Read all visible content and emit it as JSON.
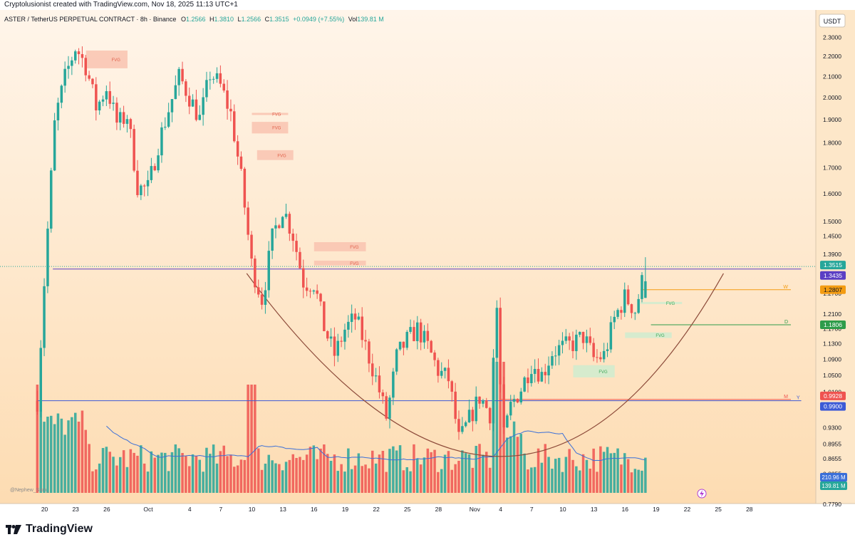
{
  "header": {
    "created_line": "Cryptolusionist created with TradingView.com, Nov 18, 2025 11:13 UTC+1"
  },
  "legend": {
    "symbol": "ASTER / TetherUS PERPETUAL CONTRACT · 8h · Binance",
    "open_label": "O",
    "open": "1.2566",
    "high_label": "H",
    "high": "1.3810",
    "low_label": "L",
    "low": "1.2566",
    "close_label": "C",
    "close": "1.3515",
    "change": "+0.0949 (+7.55%)",
    "vol_label": "Vol",
    "vol": "139.81 M"
  },
  "watermark": "@Nephew_Sam_",
  "footer": {
    "brand": "TradingView"
  },
  "colors": {
    "up": "#26a69a",
    "down": "#ef5350",
    "bg_top": "#fff3e6",
    "bg_bottom": "#fde0b8",
    "fvg_down": "#f9c3b0",
    "fvg_up": "#cfeccf",
    "curve": "#8d4b3a",
    "vol_ma": "#3a6fd8",
    "blue_level": "#3c5ad6",
    "orange_level": "#f39c12",
    "green_level": "#2e9c4a"
  },
  "chart_data": {
    "type": "candlestick",
    "symbol": "ASTER / TetherUS PERPETUAL CONTRACT",
    "timeframe": "8h",
    "exchange": "Binance",
    "y_scale": "log",
    "y_currency": "USDT",
    "y_range": [
      0.78,
      2.45
    ],
    "x_range_days": [
      "Sep 19",
      "Nov 29"
    ],
    "y_ticks": [
      "2.3000",
      "2.2000",
      "2.1000",
      "2.0000",
      "1.9000",
      "1.8000",
      "1.7000",
      "1.6000",
      "1.5000",
      "1.4500",
      "1.3900",
      "1.2700",
      "1.2100",
      "1.1700",
      "1.1300",
      "1.0900",
      "1.0500",
      "1.0100",
      "0.9300",
      "0.8955",
      "0.8655",
      "0.8355",
      "0.7790"
    ],
    "x_ticks": [
      {
        "label": "20",
        "day": 20
      },
      {
        "label": "23",
        "day": 23
      },
      {
        "label": "26",
        "day": 26
      },
      {
        "label": "Oct",
        "day": 30
      },
      {
        "label": "4",
        "day": 34
      },
      {
        "label": "7",
        "day": 37
      },
      {
        "label": "10",
        "day": 40
      },
      {
        "label": "13",
        "day": 43
      },
      {
        "label": "16",
        "day": 46
      },
      {
        "label": "19",
        "day": 49
      },
      {
        "label": "22",
        "day": 52
      },
      {
        "label": "25",
        "day": 55
      },
      {
        "label": "28",
        "day": 58
      },
      {
        "label": "Nov",
        "day": 61.5
      },
      {
        "label": "4",
        "day": 64
      },
      {
        "label": "7",
        "day": 67
      },
      {
        "label": "10",
        "day": 70
      },
      {
        "label": "13",
        "day": 73
      },
      {
        "label": "16",
        "day": 76
      },
      {
        "label": "19",
        "day": 79
      },
      {
        "label": "22",
        "day": 82
      },
      {
        "label": "25",
        "day": 85
      },
      {
        "label": "28",
        "day": 88
      }
    ],
    "key_closes": [
      {
        "day": 19.3,
        "close": 0.99
      },
      {
        "day": 20,
        "close": 1.32
      },
      {
        "day": 21,
        "close": 1.9
      },
      {
        "day": 22,
        "close": 2.1
      },
      {
        "day": 23,
        "close": 2.25
      },
      {
        "day": 24,
        "close": 2.15
      },
      {
        "day": 25,
        "close": 1.95
      },
      {
        "day": 26,
        "close": 2.05
      },
      {
        "day": 27,
        "close": 1.88
      },
      {
        "day": 28,
        "close": 1.92
      },
      {
        "day": 29,
        "close": 1.62
      },
      {
        "day": 30,
        "close": 1.62
      },
      {
        "day": 31,
        "close": 1.8
      },
      {
        "day": 32,
        "close": 1.95
      },
      {
        "day": 33,
        "close": 2.1
      },
      {
        "day": 34,
        "close": 2.0
      },
      {
        "day": 35,
        "close": 1.9
      },
      {
        "day": 36,
        "close": 2.12
      },
      {
        "day": 37,
        "close": 2.05
      },
      {
        "day": 38,
        "close": 1.92
      },
      {
        "day": 39,
        "close": 1.65
      },
      {
        "day": 40,
        "close": 1.35
      },
      {
        "day": 41,
        "close": 1.25
      },
      {
        "day": 42,
        "close": 1.45
      },
      {
        "day": 43,
        "close": 1.55
      },
      {
        "day": 44,
        "close": 1.45
      },
      {
        "day": 45,
        "close": 1.3
      },
      {
        "day": 46,
        "close": 1.3
      },
      {
        "day": 47,
        "close": 1.17
      },
      {
        "day": 48,
        "close": 1.1
      },
      {
        "day": 49,
        "close": 1.17
      },
      {
        "day": 50,
        "close": 1.2
      },
      {
        "day": 51,
        "close": 1.12
      },
      {
        "day": 52,
        "close": 1.04
      },
      {
        "day": 53,
        "close": 0.95
      },
      {
        "day": 54,
        "close": 1.1
      },
      {
        "day": 55,
        "close": 1.14
      },
      {
        "day": 56,
        "close": 1.17
      },
      {
        "day": 57,
        "close": 1.12
      },
      {
        "day": 58,
        "close": 1.06
      },
      {
        "day": 59,
        "close": 1.04
      },
      {
        "day": 60,
        "close": 0.9
      },
      {
        "day": 61,
        "close": 0.95
      },
      {
        "day": 62,
        "close": 1.0
      },
      {
        "day": 63,
        "close": 0.96
      },
      {
        "day": 63.6,
        "close": 1.25
      },
      {
        "day": 64.2,
        "close": 0.9
      },
      {
        "day": 65,
        "close": 0.98
      },
      {
        "day": 66,
        "close": 1.02
      },
      {
        "day": 67,
        "close": 1.08
      },
      {
        "day": 68,
        "close": 1.05
      },
      {
        "day": 69,
        "close": 1.11
      },
      {
        "day": 70,
        "close": 1.12
      },
      {
        "day": 71,
        "close": 1.13
      },
      {
        "day": 72,
        "close": 1.15
      },
      {
        "day": 73,
        "close": 1.09
      },
      {
        "day": 74,
        "close": 1.1
      },
      {
        "day": 75,
        "close": 1.2
      },
      {
        "day": 76,
        "close": 1.26
      },
      {
        "day": 77,
        "close": 1.22
      },
      {
        "day": 77.6,
        "close": 1.3
      },
      {
        "day": 78.2,
        "close": 1.3515
      }
    ],
    "volume": {
      "ma_label": "210.96 M",
      "last_label": "139.81 M",
      "spikes_days": [
        19.3,
        40,
        63.6,
        64.2
      ]
    },
    "fvg_zones": [
      {
        "label": "FVG",
        "type": "bearish",
        "x1": 24,
        "x2": 28,
        "y_top": 2.23,
        "y_bottom": 2.14
      },
      {
        "label": "FVG",
        "type": "bearish",
        "x1": 40,
        "x2": 43.5,
        "y_top": 1.93,
        "y_bottom": 1.925
      },
      {
        "label": "FVG",
        "type": "bearish",
        "x1": 40,
        "x2": 43.5,
        "y_top": 1.89,
        "y_bottom": 1.84
      },
      {
        "label": "FVG",
        "type": "bearish",
        "x1": 40.5,
        "x2": 44,
        "y_top": 1.77,
        "y_bottom": 1.73
      },
      {
        "label": "FVG",
        "type": "bearish",
        "x1": 46,
        "x2": 51,
        "y_top": 1.43,
        "y_bottom": 1.4
      },
      {
        "label": "FVG",
        "type": "bearish",
        "x1": 46,
        "x2": 51,
        "y_top": 1.37,
        "y_bottom": 1.355
      },
      {
        "label": "FVG",
        "type": "bullish",
        "x1": 77.5,
        "x2": 81.5,
        "y_top": 1.245,
        "y_bottom": 1.24
      },
      {
        "label": "FVG",
        "type": "bullish",
        "x1": 76,
        "x2": 80.5,
        "y_top": 1.16,
        "y_bottom": 1.145
      },
      {
        "label": "FVG",
        "type": "bullish",
        "x1": 71,
        "x2": 75,
        "y_top": 1.075,
        "y_bottom": 1.045
      }
    ],
    "levels": [
      {
        "name": "range_high",
        "price": 1.3435,
        "label": "1.3435",
        "color": "#5b3fc4",
        "x1": 20.8,
        "x2": 93
      },
      {
        "name": "Y",
        "price": 0.99,
        "label": "0.9900",
        "color": "#3c5ad6",
        "x1": 19.3,
        "x2": 93,
        "text": "Y"
      },
      {
        "name": "M",
        "price": 0.9928,
        "label": "0.9928",
        "color": "#ef5350",
        "x1": 64,
        "x2": 92,
        "text": "M"
      },
      {
        "name": "W",
        "price": 1.2807,
        "label": "1.2807",
        "color": "#f39c12",
        "x1": 77.5,
        "x2": 92,
        "text": "W"
      },
      {
        "name": "D",
        "price": 1.1806,
        "label": "1.1806",
        "color": "#2e9c4a",
        "x1": 78.5,
        "x2": 92,
        "text": "D"
      }
    ],
    "last_price": {
      "price": 1.3515,
      "label": "1.3515"
    },
    "arc": {
      "description": "rounded bottom curve",
      "start_day": 39.5,
      "start_price": 1.33,
      "bottom_day": 64,
      "bottom_price": 0.87,
      "end_day": 85.5,
      "end_price": 1.33
    }
  }
}
